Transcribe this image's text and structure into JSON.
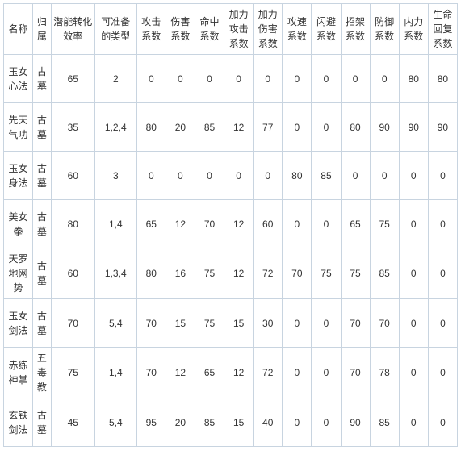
{
  "table": {
    "columns": [
      "名称",
      "归属",
      "潜能转化效率",
      "可准备的类型",
      "攻击系数",
      "伤害系数",
      "命中系数",
      "加力攻击系数",
      "加力伤害系数",
      "攻速系数",
      "闪避系数",
      "招架系数",
      "防御系数",
      "内力系数",
      "生命回复系数"
    ],
    "rows": [
      [
        "玉女心法",
        "古墓",
        "65",
        "2",
        "0",
        "0",
        "0",
        "0",
        "0",
        "0",
        "0",
        "0",
        "0",
        "80",
        "80"
      ],
      [
        "先天气功",
        "古墓",
        "35",
        "1,2,4",
        "80",
        "20",
        "85",
        "12",
        "77",
        "0",
        "0",
        "80",
        "90",
        "90",
        "90"
      ],
      [
        "玉女身法",
        "古墓",
        "60",
        "3",
        "0",
        "0",
        "0",
        "0",
        "0",
        "80",
        "85",
        "0",
        "0",
        "0",
        "0"
      ],
      [
        "美女拳",
        "古墓",
        "80",
        "1,4",
        "65",
        "12",
        "70",
        "12",
        "60",
        "0",
        "0",
        "65",
        "75",
        "0",
        "0"
      ],
      [
        "天罗地网势",
        "古墓",
        "60",
        "1,3,4",
        "80",
        "16",
        "75",
        "12",
        "72",
        "70",
        "75",
        "75",
        "85",
        "0",
        "0"
      ],
      [
        "玉女剑法",
        "古墓",
        "70",
        "5,4",
        "70",
        "15",
        "75",
        "15",
        "30",
        "0",
        "0",
        "70",
        "70",
        "0",
        "0"
      ],
      [
        "赤练神掌",
        "五毒教",
        "75",
        "1,4",
        "70",
        "12",
        "65",
        "12",
        "72",
        "0",
        "0",
        "70",
        "78",
        "0",
        "0"
      ],
      [
        "玄铁剑法",
        "古墓",
        "45",
        "5,4",
        "95",
        "20",
        "85",
        "15",
        "40",
        "0",
        "0",
        "90",
        "85",
        "0",
        "0"
      ]
    ],
    "border_color": "#c8d4e0",
    "text_color": "#333333",
    "background_color": "#ffffff",
    "font_size": 12,
    "col_classes": [
      "col-name",
      "col-attr",
      "col-eff",
      "col-type",
      "col-num",
      "col-num",
      "col-num",
      "col-num",
      "col-num",
      "col-num",
      "col-num",
      "col-num",
      "col-num",
      "col-num",
      "col-num"
    ]
  }
}
